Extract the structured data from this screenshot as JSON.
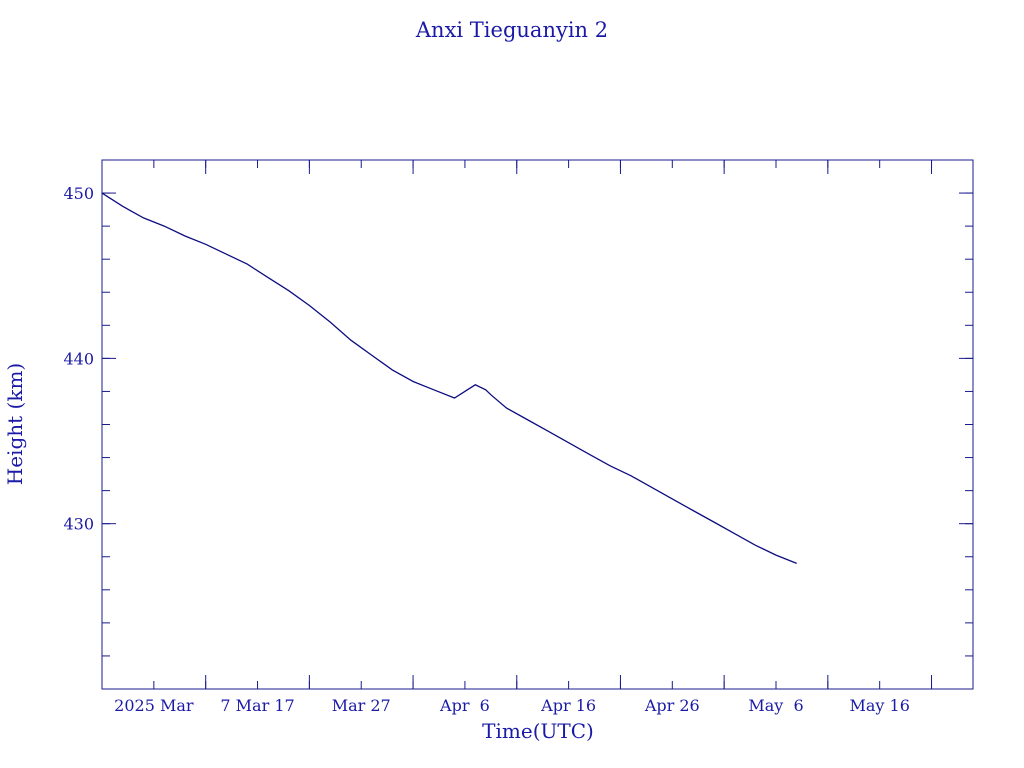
{
  "chart_data": {
    "type": "line",
    "title": "Anxi Tieguanyin 2",
    "xlabel": "Time(UTC)",
    "ylabel": "Height (km)",
    "x_axis": {
      "type": "date",
      "range": [
        "2025-02-25",
        "2025-05-20"
      ],
      "tick_labels": [
        "2025 Mar",
        "7 Mar 17",
        "Mar 27",
        "Apr  6",
        "Apr 16",
        "Apr 26",
        "May  6",
        "May 16"
      ],
      "major_ticks": [
        "2025-02-25",
        "2025-03-07",
        "2025-03-17",
        "2025-03-27",
        "2025-04-06",
        "2025-04-16",
        "2025-04-26",
        "2025-05-06",
        "2025-05-16"
      ],
      "label_positions": [
        "2025-03-02",
        "2025-03-12",
        "2025-03-22",
        "2025-04-01",
        "2025-04-11",
        "2025-04-21",
        "2025-05-01",
        "2025-05-11",
        "2025-05-21"
      ],
      "minor_tick_days": 5
    },
    "y_axis": {
      "range": [
        420,
        452
      ],
      "tick_values": [
        430,
        440,
        450
      ],
      "tick_labels": [
        "430",
        "440",
        "450"
      ],
      "minor_tick_step": 2
    },
    "grid": false,
    "legend": "none",
    "color": "#0d0d80",
    "series": [
      {
        "x": [
          "2025-02-25",
          "2025-02-27",
          "2025-03-01",
          "2025-03-03",
          "2025-03-05",
          "2025-03-07",
          "2025-03-09",
          "2025-03-11",
          "2025-03-13",
          "2025-03-15",
          "2025-03-17",
          "2025-03-19",
          "2025-03-21",
          "2025-03-23",
          "2025-03-25",
          "2025-03-27",
          "2025-03-29",
          "2025-03-31",
          "2025-04-02",
          "2025-04-03",
          "2025-04-03T12",
          "2025-04-05",
          "2025-04-07",
          "2025-04-09",
          "2025-04-11",
          "2025-04-13",
          "2025-04-15",
          "2025-04-17",
          "2025-04-19",
          "2025-04-21",
          "2025-04-23",
          "2025-04-25",
          "2025-04-27",
          "2025-04-29",
          "2025-05-01",
          "2025-05-03"
        ],
        "y": [
          450.0,
          449.2,
          448.5,
          448.0,
          447.4,
          446.9,
          446.3,
          445.7,
          444.9,
          444.1,
          443.2,
          442.2,
          441.1,
          440.2,
          439.3,
          438.6,
          438.1,
          437.6,
          438.4,
          438.1,
          437.8,
          437.0,
          436.3,
          435.6,
          434.9,
          434.2,
          433.5,
          432.9,
          432.2,
          431.5,
          430.8,
          430.1,
          429.4,
          428.7,
          428.1,
          427.6
        ]
      }
    ]
  }
}
